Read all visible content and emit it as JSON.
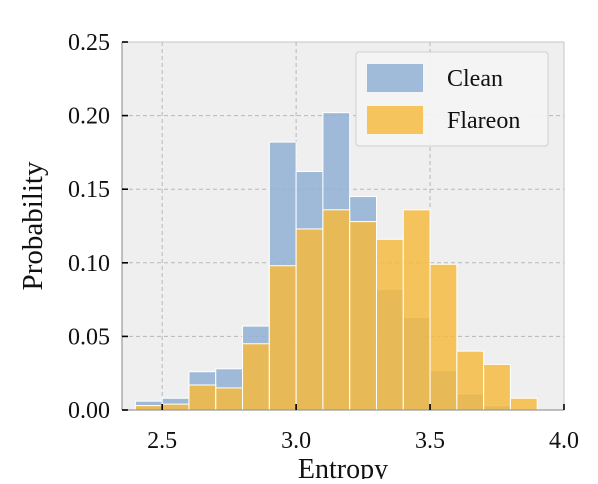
{
  "chart_data": {
    "type": "bar",
    "title": "",
    "xlabel": "Entropy",
    "ylabel": "Probability",
    "xlim": [
      2.35,
      4.0
    ],
    "ylim": [
      0,
      0.25
    ],
    "x_ticks": [
      2.5,
      3.0,
      3.5,
      4.0
    ],
    "x_tick_labels": [
      "2.5",
      "3.0",
      "3.5",
      "4.0"
    ],
    "y_ticks": [
      0.0,
      0.05,
      0.1,
      0.15,
      0.2,
      0.25
    ],
    "y_tick_labels": [
      "0.00",
      "0.05",
      "0.10",
      "0.15",
      "0.20",
      "0.25"
    ],
    "grid": true,
    "legend_position": "top-right",
    "bins": [
      [
        2.4,
        2.5
      ],
      [
        2.5,
        2.6
      ],
      [
        2.6,
        2.7
      ],
      [
        2.7,
        2.8
      ],
      [
        2.8,
        2.9
      ],
      [
        2.9,
        3.0
      ],
      [
        3.0,
        3.1
      ],
      [
        3.1,
        3.2
      ],
      [
        3.2,
        3.3
      ],
      [
        3.3,
        3.4
      ],
      [
        3.4,
        3.5
      ],
      [
        3.5,
        3.6
      ],
      [
        3.6,
        3.7
      ],
      [
        3.7,
        3.8
      ],
      [
        3.8,
        3.9
      ]
    ],
    "series": [
      {
        "name": "Clean",
        "color": "#8fb0d4",
        "opacity": 0.85,
        "values": [
          0.006,
          0.008,
          0.026,
          0.028,
          0.057,
          0.182,
          0.162,
          0.202,
          0.145,
          0.082,
          0.063,
          0.027,
          0.011,
          0.003,
          0.0
        ]
      },
      {
        "name": "Flareon",
        "color": "#f6b93b",
        "opacity": 0.82,
        "values": [
          0.003,
          0.004,
          0.017,
          0.015,
          0.045,
          0.098,
          0.123,
          0.136,
          0.128,
          0.116,
          0.136,
          0.099,
          0.04,
          0.031,
          0.008
        ]
      }
    ]
  }
}
